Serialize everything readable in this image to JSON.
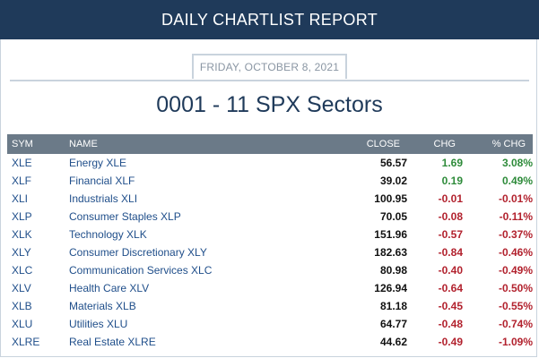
{
  "header": {
    "title": "DAILY CHARTLIST REPORT"
  },
  "report": {
    "date": "FRIDAY, OCTOBER 8, 2021",
    "list_title": "0001 - 11 SPX Sectors"
  },
  "table": {
    "columns": {
      "sym": "SYM",
      "name": "NAME",
      "close": "CLOSE",
      "chg": "CHG",
      "pct": "% CHG"
    },
    "rows": [
      {
        "sym": "XLE",
        "name": "Energy XLE",
        "close": "56.57",
        "chg": "1.69",
        "pct": "3.08%",
        "dir": "pos"
      },
      {
        "sym": "XLF",
        "name": "Financial XLF",
        "close": "39.02",
        "chg": "0.19",
        "pct": "0.49%",
        "dir": "pos"
      },
      {
        "sym": "XLI",
        "name": "Industrials XLI",
        "close": "100.95",
        "chg": "-0.01",
        "pct": "-0.01%",
        "dir": "neg"
      },
      {
        "sym": "XLP",
        "name": "Consumer Staples XLP",
        "close": "70.05",
        "chg": "-0.08",
        "pct": "-0.11%",
        "dir": "neg"
      },
      {
        "sym": "XLK",
        "name": "Technology XLK",
        "close": "151.96",
        "chg": "-0.57",
        "pct": "-0.37%",
        "dir": "neg"
      },
      {
        "sym": "XLY",
        "name": "Consumer Discretionary XLY",
        "close": "182.63",
        "chg": "-0.84",
        "pct": "-0.46%",
        "dir": "neg"
      },
      {
        "sym": "XLC",
        "name": "Communication Services XLC",
        "close": "80.98",
        "chg": "-0.40",
        "pct": "-0.49%",
        "dir": "neg"
      },
      {
        "sym": "XLV",
        "name": "Health Care XLV",
        "close": "126.94",
        "chg": "-0.64",
        "pct": "-0.50%",
        "dir": "neg"
      },
      {
        "sym": "XLB",
        "name": "Materials XLB",
        "close": "81.18",
        "chg": "-0.45",
        "pct": "-0.55%",
        "dir": "neg"
      },
      {
        "sym": "XLU",
        "name": "Utilities XLU",
        "close": "64.77",
        "chg": "-0.48",
        "pct": "-0.74%",
        "dir": "neg"
      },
      {
        "sym": "XLRE",
        "name": "Real Estate XLRE",
        "close": "44.62",
        "chg": "-0.49",
        "pct": "-1.09%",
        "dir": "neg"
      }
    ]
  },
  "colors": {
    "header_bg": "#1f3a5a",
    "table_header_bg": "#6b7a88",
    "link": "#1f4e8a",
    "positive": "#2e8b3a",
    "negative": "#b2222e"
  }
}
